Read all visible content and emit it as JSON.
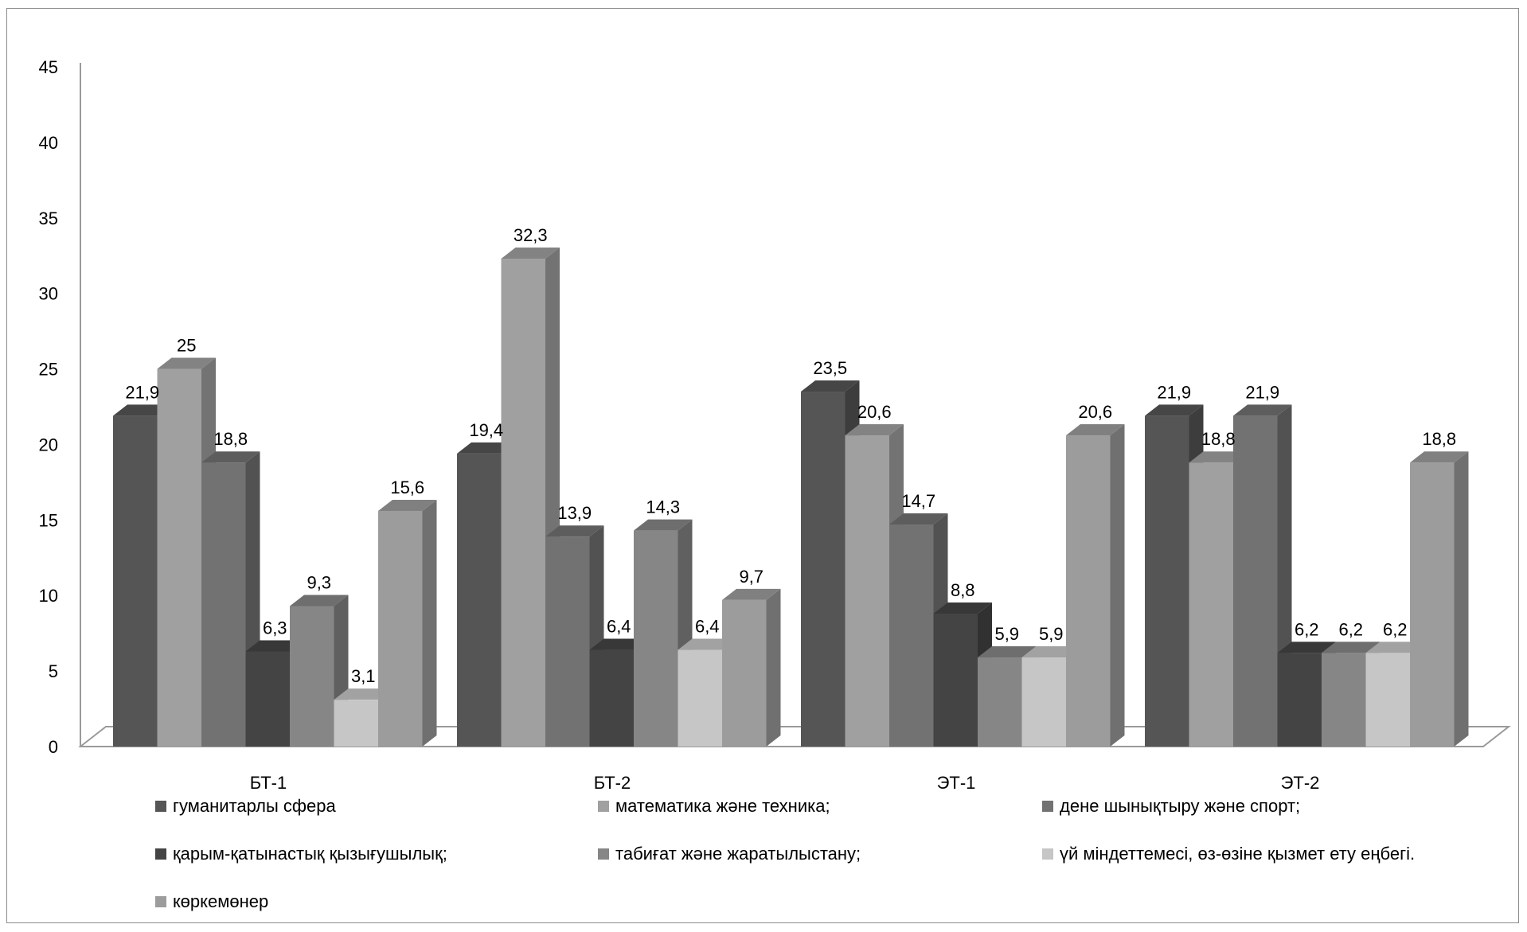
{
  "chart_data": {
    "type": "bar",
    "categories": [
      "БТ-1",
      "БТ-2",
      "ЭТ-1",
      "ЭТ-2"
    ],
    "series": [
      {
        "name": "гуманитарлы сфера",
        "values": [
          21.9,
          19.4,
          23.5,
          21.9
        ],
        "color": "#555555"
      },
      {
        "name": "математика және техника;",
        "values": [
          25,
          32.3,
          20.6,
          18.8
        ],
        "color": "#a0a0a0"
      },
      {
        "name": "дене шынықтыру және спорт;",
        "values": [
          18.8,
          13.9,
          14.7,
          21.9
        ],
        "color": "#727272"
      },
      {
        "name": "қарым-қатынастық қызығушылық;",
        "values": [
          6.3,
          6.4,
          8.8,
          6.2
        ],
        "color": "#444444"
      },
      {
        "name": "табиғат және жаратылыстану;",
        "values": [
          9.3,
          14.3,
          5.9,
          6.2
        ],
        "color": "#868686"
      },
      {
        "name": "үй міндеттемесі, өз-өзіне қызмет ету еңбегі.",
        "values": [
          3.1,
          6.4,
          5.9,
          6.2
        ],
        "color": "#c6c6c6"
      },
      {
        "name": "көркемөнер",
        "values": [
          15.6,
          9.7,
          20.6,
          18.8
        ],
        "color": "#9c9c9c"
      }
    ],
    "data_labels": [
      [
        "21,9",
        "25",
        "18,8",
        "6,3",
        "9,3",
        "3,1",
        "15,6"
      ],
      [
        "19,4",
        "32,3",
        "13,9",
        "6,4",
        "14,3",
        "6,4",
        "9,7"
      ],
      [
        "23,5",
        "20,6",
        "14,7",
        "8,8",
        "5,9",
        "5,9",
        "20,6"
      ],
      [
        "21,9",
        "18,8",
        "21,9",
        "6,2",
        "6,2",
        "6,2",
        "18,8"
      ]
    ],
    "y_ticks": [
      "0",
      "5",
      "10",
      "15",
      "20",
      "25",
      "30",
      "35",
      "40",
      "45"
    ],
    "ylim": [
      0,
      45
    ],
    "title": "",
    "xlabel": "",
    "ylabel": "",
    "grid": false,
    "legend_position": "bottom",
    "style": "3d"
  }
}
